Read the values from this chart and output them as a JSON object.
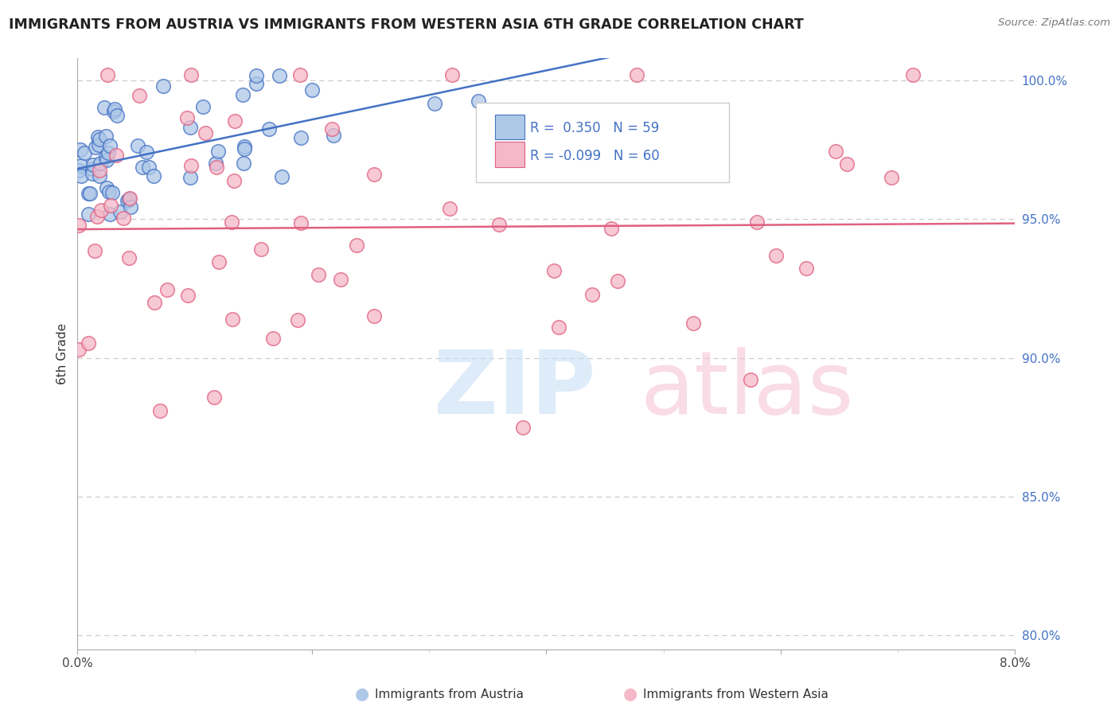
{
  "title": "IMMIGRANTS FROM AUSTRIA VS IMMIGRANTS FROM WESTERN ASIA 6TH GRADE CORRELATION CHART",
  "source": "Source: ZipAtlas.com",
  "ylabel": "6th Grade",
  "y_ticks_right": [
    1.0,
    0.95,
    0.9,
    0.85,
    0.8
  ],
  "y_tick_labels_right": [
    "100.0%",
    "95.0%",
    "90.0%",
    "85.0%",
    "80.0%"
  ],
  "xlim": [
    0.0,
    0.08
  ],
  "ylim": [
    0.795,
    1.008
  ],
  "austria_R": 0.35,
  "austria_N": 59,
  "western_asia_R": -0.099,
  "western_asia_N": 60,
  "austria_color": "#aec8e8",
  "austria_edge": "#4472c4",
  "western_asia_color": "#f4b8c8",
  "western_asia_edge": "#e06080",
  "trendline_austria_color": "#4472c4",
  "trendline_western_asia_color": "#e06080",
  "background_color": "#ffffff",
  "grid_color": "#cccccc",
  "legend_border_color": "#cccccc",
  "text_color": "#222222",
  "axis_label_color": "#4472c4",
  "bottom_legend_austria": "Immigrants from Austria",
  "bottom_legend_western_asia": "Immigrants from Western Asia"
}
